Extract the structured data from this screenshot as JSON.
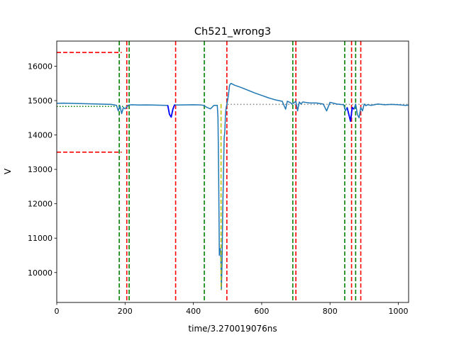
{
  "chart_data": {
    "type": "line",
    "title": "Ch521_wrong3",
    "xlabel": "time/3.270019076ns",
    "ylabel": "V",
    "xlim": [
      0,
      1030
    ],
    "ylim": [
      9130,
      16730
    ],
    "xticks": [
      0,
      200,
      400,
      600,
      800,
      1000
    ],
    "yticks": [
      10000,
      11000,
      12000,
      13000,
      14000,
      15000,
      16000
    ],
    "grid": false,
    "legend": "none",
    "colors": {
      "waveform": "#1f77b4",
      "highlight": "#0000ff",
      "red_lines": "#ff0000",
      "green_lines": "#008000",
      "yellow_line": "#bfbf00",
      "baseline": "#808080",
      "threshold": "#008000"
    },
    "series": [
      {
        "role": "waveform",
        "x": [
          0,
          20,
          40,
          60,
          80,
          100,
          120,
          140,
          160,
          175,
          180,
          185,
          190,
          195,
          200,
          210,
          220,
          240,
          260,
          280,
          300,
          320,
          325,
          330,
          335,
          340,
          345,
          350,
          370,
          400,
          420,
          430,
          440,
          450,
          460,
          470,
          472,
          474,
          476,
          478,
          480,
          482,
          484,
          486,
          488,
          490,
          492,
          494,
          496,
          498,
          500,
          503,
          506,
          510,
          520,
          540,
          560,
          580,
          600,
          620,
          640,
          660,
          670,
          675,
          680,
          690,
          700,
          705,
          710,
          715,
          720,
          740,
          760,
          780,
          790,
          800,
          820,
          840,
          845,
          850,
          855,
          860,
          865,
          870,
          875,
          880,
          885,
          890,
          895,
          900,
          905,
          910,
          920,
          940,
          960,
          980,
          1000,
          1010,
          1020,
          1030
        ],
        "y": [
          14920,
          14925,
          14920,
          14915,
          14910,
          14905,
          14900,
          14895,
          14890,
          14860,
          14700,
          14850,
          14620,
          14800,
          14760,
          14870,
          14880,
          14870,
          14875,
          14870,
          14865,
          14860,
          14860,
          14600,
          14520,
          14750,
          14880,
          14870,
          14875,
          14880,
          14875,
          14860,
          14800,
          14760,
          14860,
          14860,
          14500,
          12800,
          10500,
          10700,
          10600,
          9500,
          10300,
          11900,
          12800,
          13900,
          14100,
          14600,
          14800,
          14900,
          15000,
          15200,
          15450,
          15500,
          15450,
          15380,
          15300,
          15220,
          15150,
          15080,
          15020,
          14980,
          14750,
          14980,
          14960,
          14900,
          14980,
          14700,
          14960,
          14900,
          14960,
          14930,
          14930,
          14900,
          14700,
          14950,
          14900,
          14880,
          14700,
          14800,
          14600,
          14400,
          14800,
          14750,
          14900,
          14600,
          14500,
          14800,
          14700,
          14900,
          14850,
          14880,
          14860,
          14900,
          14880,
          14890,
          14880,
          14870,
          14860,
          14870
        ]
      },
      {
        "role": "highlight",
        "x": [
          325,
          330,
          335,
          340,
          345
        ],
        "y": [
          14860,
          14600,
          14520,
          14750,
          14880
        ]
      },
      {
        "role": "highlight",
        "x": [
          850,
          855,
          860,
          865,
          870
        ],
        "y": [
          14800,
          14600,
          14400,
          14800,
          14750
        ]
      }
    ],
    "vlines_red": [
      205,
      348,
      498,
      700,
      863,
      890
    ],
    "vlines_green": [
      183,
      212,
      432,
      691,
      843,
      875
    ],
    "vline_yellow": 481,
    "hlines_red": [
      {
        "y": 16400,
        "x": [
          0,
          190
        ]
      },
      {
        "y": 13500,
        "x": [
          0,
          190
        ]
      }
    ],
    "hline_threshold": {
      "y": 14830,
      "x": [
        0,
        200
      ]
    },
    "hline_baseline": {
      "y": 14890,
      "x": [
        500,
        1030
      ]
    }
  }
}
